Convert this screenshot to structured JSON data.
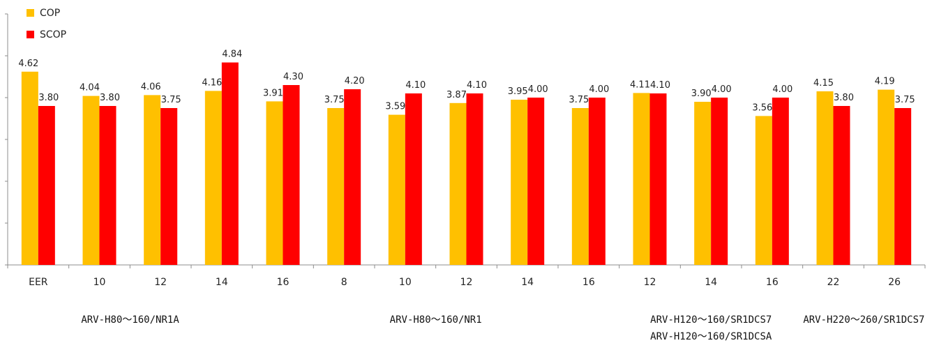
{
  "chart_data": {
    "type": "bar",
    "categories": [
      "EER",
      "10",
      "12",
      "14",
      "16",
      "8",
      "10",
      "12",
      "14",
      "16",
      "12",
      "14",
      "16",
      "22",
      "26"
    ],
    "series": [
      {
        "name": "COP",
        "color": "#FFC000",
        "values": [
          4.62,
          4.04,
          4.06,
          4.16,
          3.91,
          3.75,
          3.59,
          3.87,
          3.95,
          3.75,
          4.11,
          3.9,
          3.56,
          4.15,
          4.19
        ]
      },
      {
        "name": "SCOP",
        "color": "#FF0000",
        "values": [
          3.8,
          3.8,
          3.75,
          4.84,
          4.3,
          4.2,
          4.1,
          4.1,
          4.0,
          4.0,
          4.1,
          4.0,
          4.0,
          3.8,
          3.75
        ]
      }
    ],
    "data_labels": {
      "COP": [
        "4.62",
        "4.04",
        "4.06",
        "4.16",
        "3.91",
        "3.75",
        "3.59",
        "3.87",
        "3.95",
        "3.75",
        "4.11",
        "3.90",
        "3.56",
        "4.15",
        "4.19"
      ],
      "SCOP": [
        "3.80",
        "3.80",
        "3.75",
        "4.84",
        "4.30",
        "4.20",
        "4.10",
        "4.10",
        "4.00",
        "4.00",
        "4.10",
        "4.00",
        "4.00",
        "3.80",
        "3.75"
      ]
    },
    "ylim": [
      0,
      6
    ],
    "y_tick_labels_shown": false,
    "grid": false,
    "legend_position": "top-left",
    "title": "",
    "xlabel": "",
    "ylabel": "",
    "groups": [
      {
        "labels": [
          "ARV-H80～160/NR1A"
        ],
        "categories": [
          0,
          3
        ]
      },
      {
        "labels": [
          "ARV-H80～160/NR1"
        ],
        "categories": [
          4,
          9
        ]
      },
      {
        "labels": [
          "ARV-H120～160/SR1DCS7",
          "ARV-H120～160/SR1DCSA"
        ],
        "categories": [
          10,
          12
        ]
      },
      {
        "labels": [
          "ARV-H220～260/SR1DCS7"
        ],
        "categories": [
          13,
          14
        ]
      }
    ]
  }
}
